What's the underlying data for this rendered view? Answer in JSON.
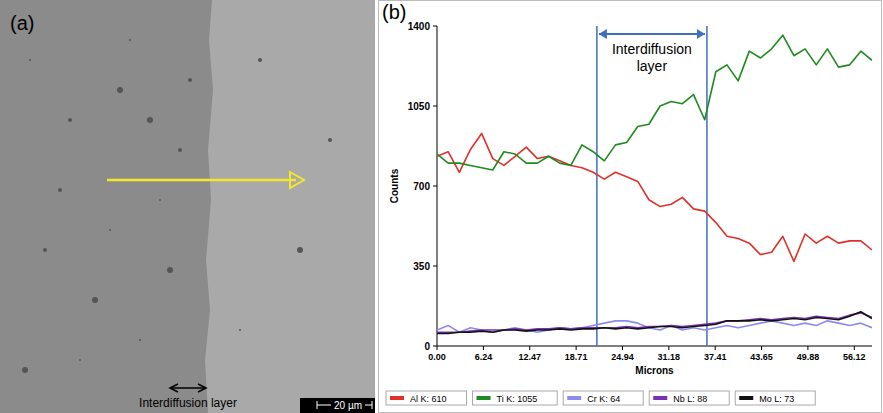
{
  "image_panel": {
    "label": "(a)",
    "annotation": "Interdiffusion layer",
    "scale_bar": "20 µm"
  },
  "chart_data": {
    "type": "line",
    "panel_label": "(b)",
    "x_label": "Microns",
    "y_label": "Counts",
    "x": [
      0,
      1.5,
      3,
      4.5,
      6,
      7.5,
      9,
      10.5,
      12,
      13.5,
      15,
      16.5,
      18,
      19.5,
      21,
      22.5,
      24,
      25.5,
      27,
      28.5,
      30,
      31.5,
      33,
      34.5,
      36,
      37.5,
      39,
      40.5,
      42,
      43.5,
      45,
      46.5,
      48,
      49.5,
      51,
      52.5,
      54,
      55.5,
      57,
      58.5
    ],
    "xlim": [
      0,
      58.5
    ],
    "ylim": [
      0,
      1400
    ],
    "xticks": [
      {
        "value": 0,
        "label": "0.00"
      },
      6.24,
      12.47,
      18.71,
      24.94,
      31.18,
      37.41,
      43.65,
      49.88,
      56.12
    ],
    "yticks": [
      0,
      350,
      700,
      1050,
      1400
    ],
    "grid": false,
    "legend": "bottom",
    "interdiffusion_layer": {
      "label": "Interdiffusion layer",
      "x": [
        21.5,
        36.3
      ]
    },
    "series": [
      {
        "name": "Al K: 610",
        "color": "#e0302a",
        "values": [
          830,
          850,
          760,
          860,
          930,
          820,
          790,
          830,
          870,
          820,
          830,
          810,
          790,
          780,
          760,
          730,
          760,
          740,
          720,
          640,
          610,
          620,
          650,
          600,
          590,
          540,
          480,
          470,
          450,
          400,
          410,
          480,
          370,
          490,
          450,
          480,
          450,
          460,
          460,
          420
        ]
      },
      {
        "name": "Ti K: 1055",
        "color": "#1f8a1f",
        "values": [
          840,
          800,
          800,
          790,
          780,
          770,
          850,
          840,
          800,
          800,
          830,
          800,
          790,
          880,
          850,
          810,
          880,
          890,
          960,
          970,
          1050,
          1070,
          1060,
          1100,
          990,
          1200,
          1230,
          1160,
          1290,
          1260,
          1300,
          1360,
          1270,
          1300,
          1230,
          1300,
          1220,
          1230,
          1290,
          1250
        ]
      },
      {
        "name": "Cr K: 64",
        "color": "#8c8cf0",
        "values": [
          70,
          90,
          60,
          80,
          70,
          60,
          70,
          80,
          70,
          60,
          70,
          80,
          75,
          80,
          90,
          100,
          110,
          110,
          100,
          80,
          70,
          90,
          70,
          80,
          70,
          80,
          90,
          80,
          90,
          100,
          110,
          100,
          90,
          100,
          90,
          110,
          100,
          90,
          100,
          80
        ]
      },
      {
        "name": "Nb L: 88",
        "color": "#7a2fb5",
        "values": [
          60,
          60,
          60,
          65,
          70,
          70,
          70,
          75,
          70,
          75,
          75,
          80,
          75,
          80,
          80,
          80,
          80,
          85,
          80,
          85,
          85,
          90,
          85,
          90,
          95,
          100,
          110,
          110,
          115,
          120,
          115,
          120,
          125,
          120,
          130,
          125,
          120,
          135,
          145,
          125
        ]
      },
      {
        "name": "Mo L: 73",
        "color": "#111111",
        "values": [
          55,
          55,
          60,
          60,
          65,
          60,
          70,
          70,
          65,
          70,
          70,
          75,
          70,
          75,
          75,
          80,
          75,
          80,
          75,
          80,
          85,
          85,
          80,
          85,
          90,
          95,
          110,
          110,
          110,
          115,
          110,
          115,
          120,
          115,
          125,
          120,
          115,
          130,
          150,
          120
        ]
      }
    ]
  }
}
